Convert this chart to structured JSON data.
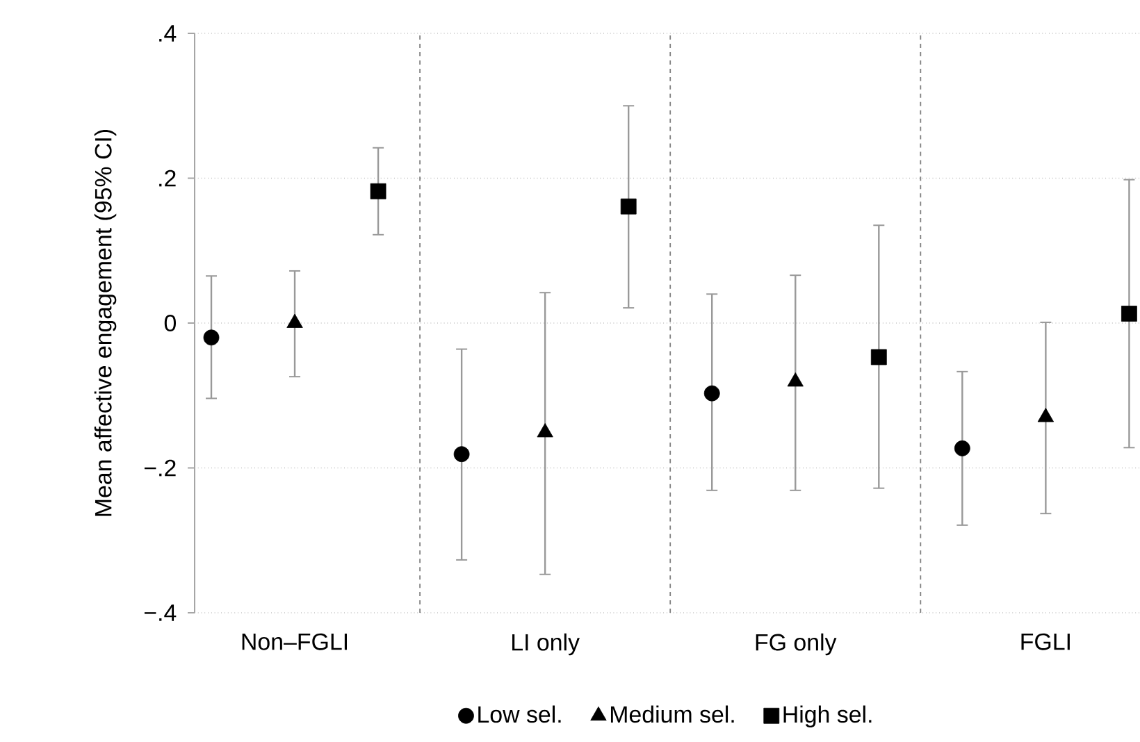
{
  "chart_data": {
    "type": "scatter",
    "ylabel": "Mean affective engagement (95% CI)",
    "categories": [
      "Non–FGLI",
      "LI only",
      "FG only",
      "FGLI"
    ],
    "series": [
      {
        "name": "Low sel.",
        "color": "#000000",
        "marker": "circle",
        "values": [
          -0.02,
          -0.181,
          -0.097,
          -0.173
        ],
        "errors": [
          [
            -0.104,
            0.065
          ],
          [
            -0.327,
            -0.036
          ],
          [
            -0.231,
            0.04
          ],
          [
            -0.279,
            -0.067
          ]
        ]
      },
      {
        "name": "Medium sel.",
        "color": "#000000",
        "marker": "triangle",
        "values": [
          0.0,
          -0.151,
          -0.081,
          -0.13
        ],
        "errors": [
          [
            -0.074,
            0.072
          ],
          [
            -0.347,
            0.042
          ],
          [
            -0.231,
            0.066
          ],
          [
            -0.263,
            0.001
          ]
        ]
      },
      {
        "name": "High sel.",
        "color": "#000000",
        "marker": "square",
        "values": [
          0.182,
          0.161,
          -0.047,
          0.013
        ],
        "errors": [
          [
            0.122,
            0.242
          ],
          [
            0.021,
            0.3
          ],
          [
            -0.228,
            0.135
          ],
          [
            -0.172,
            0.198
          ]
        ]
      }
    ],
    "ylim": [
      -0.4,
      0.4
    ],
    "yticks": [
      {
        "value": -0.4,
        "label": "−.4"
      },
      {
        "value": -0.2,
        "label": "−.2"
      },
      {
        "value": 0,
        "label": "0"
      },
      {
        "value": 0.2,
        "label": ".2"
      },
      {
        "value": 0.4,
        "label": ".4"
      }
    ],
    "grid": "y",
    "legend": "bottom"
  }
}
